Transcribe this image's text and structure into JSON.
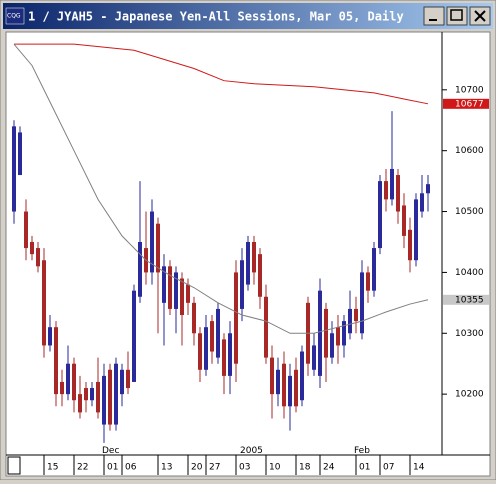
{
  "chart_data": {
    "type": "candlestick",
    "title": "1 / JYAH5 - Japanese Yen-All Sessions, Mar 05, Daily",
    "up_color": "#2a2a9a",
    "down_color": "#a82828",
    "open": [
      10500,
      10560,
      10500,
      10450,
      10440,
      10420,
      10280,
      10310,
      10220,
      10200,
      10250,
      10200,
      10210,
      10190,
      10220,
      10150,
      10240,
      10150,
      10200,
      10240,
      10220,
      10360,
      10440,
      10400,
      10480,
      10350,
      10410,
      10340,
      10390,
      10380,
      10350,
      10300,
      10240,
      10320,
      10260,
      10290,
      10230,
      10400,
      10340,
      10380,
      10450,
      10430,
      10360,
      10260,
      10200,
      10250,
      10180,
      10240,
      10190,
      10350,
      10240,
      10230,
      10340,
      10260,
      10310,
      10280,
      10300,
      10340,
      10300,
      10400,
      10370,
      10440,
      10550,
      10520,
      10560,
      10510,
      10470,
      10420,
      10500,
      10530
    ],
    "high": [
      10650,
      10640,
      10520,
      10460,
      10450,
      10440,
      10330,
      10320,
      10240,
      10280,
      10260,
      10230,
      10220,
      10220,
      10260,
      10250,
      10250,
      10260,
      10250,
      10270,
      10380,
      10550,
      10500,
      10520,
      10490,
      10430,
      10420,
      10410,
      10400,
      10390,
      10360,
      10310,
      10330,
      10330,
      10350,
      10300,
      10320,
      10420,
      10440,
      10460,
      10460,
      10440,
      10380,
      10280,
      10260,
      10270,
      10250,
      10260,
      10280,
      10360,
      10300,
      10390,
      10350,
      10320,
      10330,
      10330,
      10370,
      10360,
      10420,
      10410,
      10450,
      10560,
      10570,
      10665,
      10570,
      10530,
      10490,
      10530,
      10560,
      10560
    ],
    "low": [
      10480,
      10560,
      10420,
      10420,
      10400,
      10260,
      10270,
      10180,
      10180,
      10190,
      10170,
      10160,
      10170,
      10180,
      10160,
      10120,
      10140,
      10140,
      10180,
      10200,
      10220,
      10350,
      10380,
      10380,
      10300,
      10280,
      10330,
      10300,
      10280,
      10330,
      10280,
      10220,
      10230,
      10250,
      10250,
      10200,
      10200,
      10220,
      10320,
      10370,
      10380,
      10340,
      10250,
      10160,
      10180,
      10160,
      10140,
      10170,
      10180,
      10230,
      10230,
      10210,
      10220,
      10250,
      10250,
      10260,
      10290,
      10300,
      10290,
      10350,
      10360,
      10430,
      10500,
      10510,
      10480,
      10440,
      10400,
      10410,
      10490,
      10500
    ],
    "close": [
      10640,
      10630,
      10440,
      10430,
      10410,
      10280,
      10310,
      10200,
      10200,
      10250,
      10190,
      10170,
      10190,
      10210,
      10170,
      10230,
      10150,
      10250,
      10240,
      10210,
      10370,
      10450,
      10400,
      10500,
      10400,
      10410,
      10340,
      10400,
      10330,
      10350,
      10300,
      10240,
      10310,
      10270,
      10340,
      10230,
      10300,
      10250,
      10420,
      10450,
      10400,
      10360,
      10260,
      10200,
      10240,
      10180,
      10230,
      10180,
      10270,
      10250,
      10280,
      10370,
      10260,
      10300,
      10280,
      10320,
      10340,
      10320,
      10400,
      10370,
      10440,
      10550,
      10520,
      10570,
      10500,
      10460,
      10420,
      10520,
      10530,
      10545
    ],
    "series": [
      {
        "color": "#d01818",
        "x": [
          0,
          10,
          20,
          30,
          35,
          40,
          50,
          60,
          65,
          69
        ],
        "values": [
          10775,
          10775,
          10765,
          10735,
          10715,
          10710,
          10705,
          10695,
          10685,
          10677
        ],
        "last": 10677
      },
      {
        "color": "#808080",
        "x": [
          0,
          3,
          6,
          10,
          14,
          18,
          22,
          26,
          30,
          34,
          38,
          42,
          46,
          50,
          54,
          58,
          62,
          66,
          69
        ],
        "values": [
          10775,
          10740,
          10680,
          10600,
          10520,
          10460,
          10420,
          10395,
          10375,
          10350,
          10330,
          10320,
          10300,
          10300,
          10310,
          10320,
          10335,
          10348,
          10355
        ],
        "last": 10355
      }
    ],
    "ylim": [
      10100,
      10795
    ],
    "yticks": [
      10200,
      10300,
      10400,
      10500,
      10600,
      10700
    ],
    "xlim": [
      -1,
      71
    ],
    "xticks": [
      {
        "value": 5,
        "label": "15"
      },
      {
        "value": 10,
        "label": "22"
      },
      {
        "value": 15,
        "label": "01"
      },
      {
        "value": 18,
        "label": "06"
      },
      {
        "value": 24,
        "label": "13"
      },
      {
        "value": 29,
        "label": "20"
      },
      {
        "value": 32,
        "label": "27"
      },
      {
        "value": 37,
        "label": "03"
      },
      {
        "value": 42,
        "label": "10"
      },
      {
        "value": 47,
        "label": "18"
      },
      {
        "value": 51,
        "label": "24"
      },
      {
        "value": 57,
        "label": "01"
      },
      {
        "value": 61,
        "label": "07"
      },
      {
        "value": 66,
        "label": "14"
      }
    ],
    "xticks_upper": [
      {
        "value": 15,
        "label": "Dec"
      },
      {
        "value": 38,
        "label": "2005"
      },
      {
        "value": 57,
        "label": "Feb"
      }
    ]
  }
}
